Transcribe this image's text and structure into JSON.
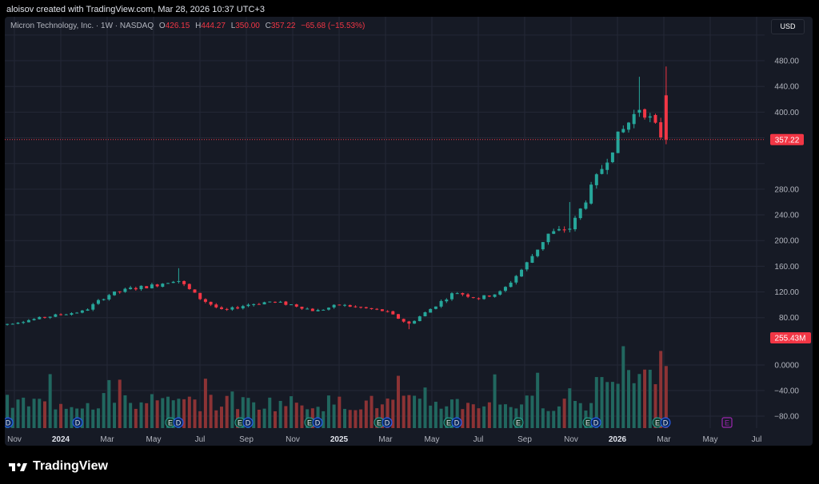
{
  "header": {
    "credit": "aloisov created with TradingView.com, Mar 28, 2026 10:37 UTC+3"
  },
  "legend": {
    "symbol": "Micron Technology, Inc. · 1W · NASDAQ",
    "open_label": "O",
    "open": "426.15",
    "high_label": "H",
    "high": "444.27",
    "low_label": "L",
    "low": "350.00",
    "close_label": "C",
    "close": "357.22",
    "change": "−65.68 (−15.53%)"
  },
  "currency": "USD",
  "brand": "TradingView",
  "colors": {
    "up": "#26a69a",
    "down": "#f23645",
    "volume_up": "#21675f",
    "volume_down": "#8c3335",
    "background": "#161a25",
    "event": "#2962ff",
    "event_future": "#9c27b0"
  },
  "chart_data": {
    "type": "candlestick",
    "price_axis": {
      "ticks": [
        80,
        120,
        160,
        200,
        240,
        280,
        320,
        360,
        400,
        440,
        480,
        520
      ],
      "tick_labels": [
        "80.00",
        "120.00",
        "160.00",
        "200.00",
        "240.00",
        "280.00",
        "",
        "",
        "400.00",
        "440.00",
        "480.00",
        ""
      ]
    },
    "lower_axis": {
      "ticks": [
        0,
        -40,
        -80
      ],
      "tick_labels": [
        "0.0000",
        "−40.00",
        "−80.00"
      ]
    },
    "last_price": "357.22",
    "last_volume": "255.43M",
    "time_axis": [
      "Nov",
      "2024",
      "Mar",
      "May",
      "Jul",
      "Sep",
      "Nov",
      "2025",
      "Mar",
      "May",
      "Jul",
      "Sep",
      "Nov",
      "2026",
      "Mar",
      "May",
      "Jul"
    ],
    "time_axis_bold": [
      "2024",
      "2025",
      "2026"
    ],
    "price_anchors": [
      {
        "date": "Oct 2023",
        "close": 66
      },
      {
        "date": "Jan 2024",
        "close": 85
      },
      {
        "date": "Feb 2024",
        "close": 90
      },
      {
        "date": "Mar 2024",
        "close": 115
      },
      {
        "date": "Apr 2024",
        "close": 125
      },
      {
        "date": "May 2024",
        "close": 130
      },
      {
        "date": "Jun 2024",
        "close": 140,
        "high": 157
      },
      {
        "date": "Jul 2024",
        "close": 110
      },
      {
        "date": "Aug 2024",
        "close": 90
      },
      {
        "date": "Sep 2024",
        "close": 100
      },
      {
        "date": "Oct 2024",
        "close": 105
      },
      {
        "date": "Nov 2024",
        "close": 100
      },
      {
        "date": "Dec 2024",
        "close": 90
      },
      {
        "date": "Jan 2025",
        "close": 100
      },
      {
        "date": "Feb 2025",
        "close": 95
      },
      {
        "date": "Mar 2025",
        "close": 90
      },
      {
        "date": "Apr 2025",
        "close": 70,
        "low": 62
      },
      {
        "date": "May 2025",
        "close": 95
      },
      {
        "date": "Jun 2025",
        "close": 120
      },
      {
        "date": "Jul 2025",
        "close": 110
      },
      {
        "date": "Aug 2025",
        "close": 120
      },
      {
        "date": "Sep 2025",
        "close": 160
      },
      {
        "date": "Oct 2025",
        "close": 210
      },
      {
        "date": "Nov 2025",
        "close": 220,
        "high": 260
      },
      {
        "date": "Dec 2025",
        "close": 290
      },
      {
        "date": "Jan 2026",
        "close": 360
      },
      {
        "date": "Feb 2026",
        "close": 410,
        "high": 455
      },
      {
        "date": "Mar 2026",
        "close": 357.22,
        "high": 471
      }
    ],
    "events": [
      {
        "date": "Nov 2023",
        "type": "D"
      },
      {
        "date": "Feb 2024",
        "type": "D"
      },
      {
        "date": "Jun 2024",
        "type": "E"
      },
      {
        "date": "Jun 2024",
        "type": "D"
      },
      {
        "date": "Sep 2024",
        "type": "E"
      },
      {
        "date": "Sep 2024",
        "type": "D"
      },
      {
        "date": "Dec 2024",
        "type": "E"
      },
      {
        "date": "Dec 2024",
        "type": "D"
      },
      {
        "date": "Mar 2025",
        "type": "E"
      },
      {
        "date": "Mar 2025",
        "type": "D"
      },
      {
        "date": "Jun 2025",
        "type": "E"
      },
      {
        "date": "Jun 2025",
        "type": "D"
      },
      {
        "date": "Sep 2025",
        "type": "E"
      },
      {
        "date": "Dec 2025",
        "type": "E"
      },
      {
        "date": "Dec 2025",
        "type": "D"
      },
      {
        "date": "Mar 2026",
        "type": "E"
      },
      {
        "date": "Mar 2026",
        "type": "D"
      },
      {
        "date": "Jun 2026",
        "type": "E"
      }
    ]
  }
}
